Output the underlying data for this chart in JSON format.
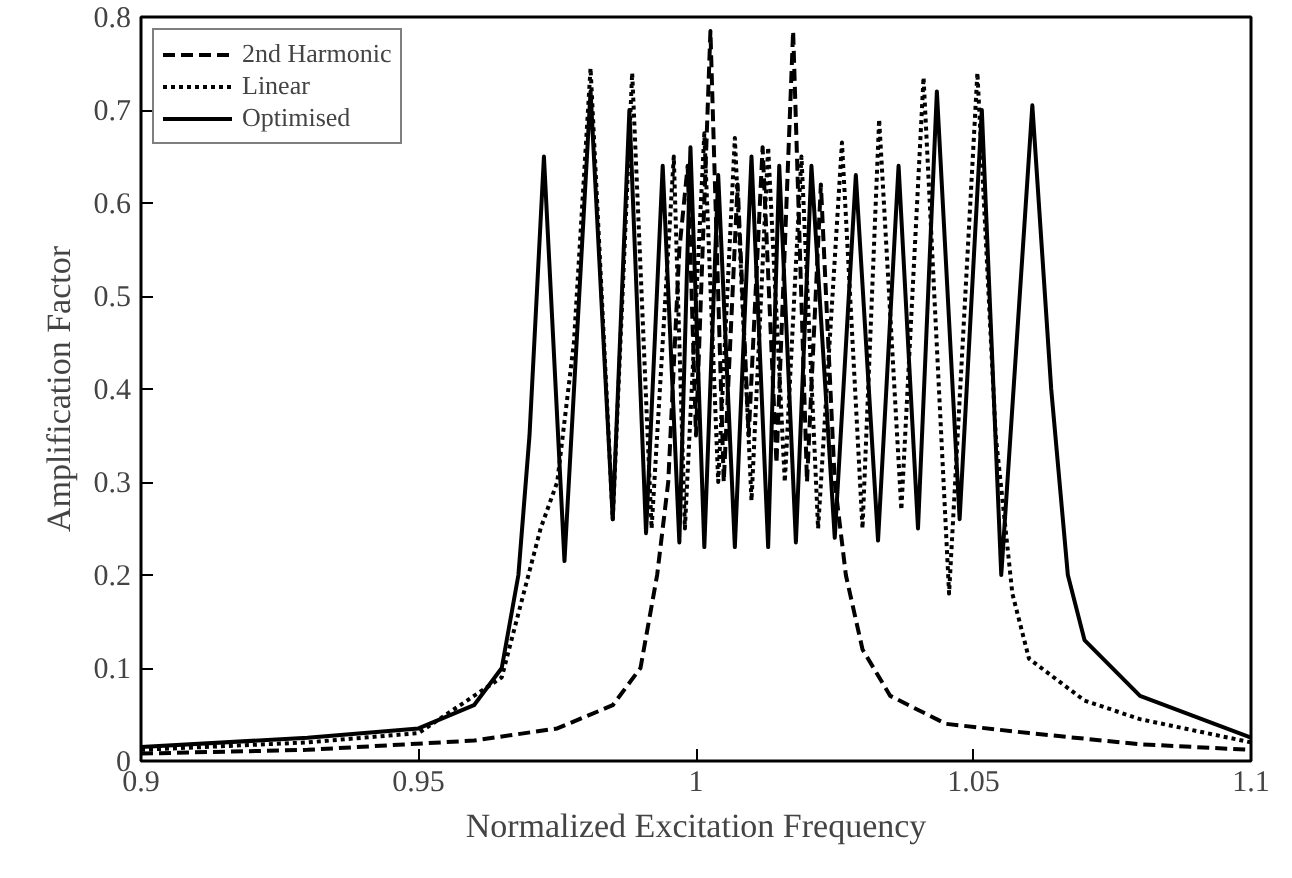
{
  "chart_data": {
    "type": "line",
    "xlabel": "Normalized Excitation Frequency",
    "ylabel": "Amplification Factor",
    "xlim": [
      0.9,
      1.1
    ],
    "xticks": [
      0.9,
      0.95,
      1,
      1.05,
      1.1
    ],
    "ylim": [
      0,
      0.8
    ],
    "yticks": [
      0,
      0.1,
      0.2,
      0.3,
      0.4,
      0.5,
      0.6,
      0.7,
      0.8
    ],
    "grid": false,
    "legend": "top left",
    "marker": "none",
    "series": [
      {
        "name": "2nd Harmonic",
        "color": "#000000",
        "line_style": "dashed",
        "x": [
          0.9,
          0.93,
          0.96,
          0.975,
          0.985,
          0.99,
          0.993,
          0.995,
          0.997,
          0.9985,
          1.0,
          1.0026,
          1.005,
          1.0075,
          1.0095,
          1.012,
          1.0145,
          1.0175,
          1.02,
          1.0225,
          1.025,
          1.027,
          1.03,
          1.035,
          1.045,
          1.06,
          1.08,
          1.1
        ],
        "values": [
          0.008,
          0.012,
          0.022,
          0.035,
          0.06,
          0.1,
          0.2,
          0.3,
          0.55,
          0.64,
          0.35,
          0.785,
          0.3,
          0.62,
          0.35,
          0.66,
          0.32,
          0.785,
          0.3,
          0.62,
          0.3,
          0.2,
          0.12,
          0.07,
          0.04,
          0.03,
          0.018,
          0.012
        ]
      },
      {
        "name": "Linear",
        "color": "#000000",
        "line_style": "dotted",
        "x": [
          0.9,
          0.93,
          0.95,
          0.965,
          0.972,
          0.975,
          0.978,
          0.981,
          0.985,
          0.9885,
          0.992,
          0.996,
          0.998,
          1.0015,
          1.004,
          1.007,
          1.01,
          1.013,
          1.016,
          1.019,
          1.022,
          1.0263,
          1.03,
          1.033,
          1.037,
          1.041,
          1.0456,
          1.0507,
          1.054,
          1.057,
          1.06,
          1.07,
          1.08,
          1.1
        ],
        "values": [
          0.012,
          0.02,
          0.03,
          0.09,
          0.25,
          0.3,
          0.45,
          0.745,
          0.26,
          0.74,
          0.25,
          0.65,
          0.25,
          0.675,
          0.3,
          0.67,
          0.28,
          0.66,
          0.3,
          0.65,
          0.25,
          0.665,
          0.25,
          0.69,
          0.27,
          0.735,
          0.18,
          0.74,
          0.35,
          0.18,
          0.11,
          0.065,
          0.045,
          0.02
        ]
      },
      {
        "name": "Optimised",
        "color": "#000000",
        "line_style": "solid",
        "x": [
          0.9,
          0.93,
          0.95,
          0.96,
          0.965,
          0.968,
          0.97,
          0.9726,
          0.9763,
          0.981,
          0.985,
          0.988,
          0.991,
          0.994,
          0.997,
          0.999,
          1.0015,
          1.004,
          1.007,
          1.01,
          1.013,
          1.015,
          1.018,
          1.0208,
          1.025,
          1.0288,
          1.0328,
          1.0365,
          1.04,
          1.0434,
          1.0475,
          1.0515,
          1.055,
          1.0606,
          1.064,
          1.067,
          1.07,
          1.08,
          1.1
        ],
        "values": [
          0.015,
          0.025,
          0.035,
          0.06,
          0.1,
          0.2,
          0.35,
          0.65,
          0.215,
          0.72,
          0.26,
          0.7,
          0.245,
          0.64,
          0.235,
          0.66,
          0.23,
          0.63,
          0.23,
          0.65,
          0.23,
          0.64,
          0.235,
          0.64,
          0.24,
          0.63,
          0.237,
          0.64,
          0.25,
          0.72,
          0.26,
          0.7,
          0.2,
          0.705,
          0.4,
          0.2,
          0.13,
          0.07,
          0.025
        ]
      }
    ]
  }
}
